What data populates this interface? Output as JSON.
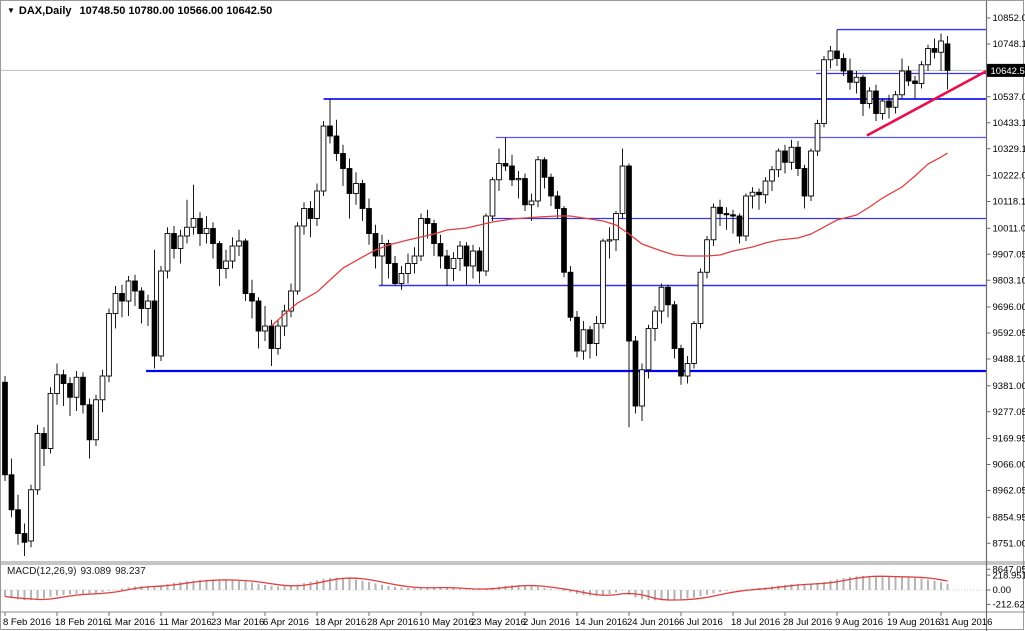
{
  "window": {
    "title_symbol": "DAX,Daily",
    "title_ohlc": "10748.50 10780.00 10566.00 10642.50"
  },
  "icons": {
    "dropdown": "▼"
  },
  "price_axis": {
    "labels": [
      "10852.05",
      "10748.10",
      "10537.05",
      "10433.10",
      "10329.15",
      "10222.05",
      "10118.10",
      "10011.00",
      "9907.05",
      "9803.10",
      "9696.00",
      "9592.05",
      "9488.10",
      "9381.00",
      "9277.05",
      "9169.95",
      "9066.00",
      "8962.05",
      "8854.95",
      "8751.00",
      "8647.05"
    ],
    "current_price_label": "10642.50"
  },
  "time_axis": {
    "labels": [
      "8 Feb 2016",
      "18 Feb 2016",
      "1 Mar 2016",
      "11 Mar 2016",
      "23 Mar 2016",
      "6 Apr 2016",
      "18 Apr 2016",
      "28 Apr 2016",
      "10 May 2016",
      "23 May 2016",
      "2 Jun 2016",
      "14 Jun 2016",
      "24 Jun 2016",
      "6 Jul 2016",
      "18 Jul 2016",
      "28 Jul 2016",
      "9 Aug 2016",
      "19 Aug 2016",
      "31 Aug 2016"
    ]
  },
  "macd": {
    "name_label": "MACD(12,26,9)",
    "value_main": "93.089",
    "value_signal": "98.237",
    "axis_labels": [
      "218.951",
      "0.00",
      "-212.627"
    ]
  },
  "colors": {
    "bull_fill": "#ffffff",
    "bear_fill": "#000000",
    "candle_stroke": "#000000",
    "ma_line": "#e04040",
    "trendline": "#e8104c",
    "level_blue": "#3434f0",
    "level_blue_bold": "#0000ff",
    "level_blue_light": "#5858ff",
    "macd_bar": "#b4b4b4",
    "macd_signal": "#e04040",
    "current_price_line": "#bdbdbd",
    "price_label_bg": "#000000",
    "price_label_fg": "#ffffff",
    "axis_line": "#6e6e6e",
    "separator": "#8c8c8c",
    "text": "#000000"
  },
  "chart_data": {
    "type": "candlestick",
    "title": "DAX,Daily",
    "last_bar": {
      "open": 10748.5,
      "high": 10780.0,
      "low": 10566.0,
      "close": 10642.5
    },
    "current_price": 10642.5,
    "ylim": [
      8647.05,
      10852.05
    ],
    "x_label_step_bars": 8,
    "candles": [
      [
        9395,
        9420,
        9000,
        9025
      ],
      [
        9025,
        9090,
        8855,
        8885
      ],
      [
        8885,
        8945,
        8745,
        8790
      ],
      [
        8790,
        8830,
        8700,
        8755
      ],
      [
        8760,
        8985,
        8735,
        8965
      ],
      [
        8965,
        9225,
        8945,
        9190
      ],
      [
        9190,
        9215,
        9060,
        9130
      ],
      [
        9130,
        9375,
        9110,
        9350
      ],
      [
        9350,
        9470,
        9305,
        9425
      ],
      [
        9425,
        9445,
        9300,
        9390
      ],
      [
        9390,
        9415,
        9260,
        9335
      ],
      [
        9335,
        9440,
        9280,
        9415
      ],
      [
        9415,
        9435,
        9270,
        9305
      ],
      [
        9305,
        9330,
        9090,
        9165
      ],
      [
        9165,
        9345,
        9140,
        9325
      ],
      [
        9325,
        9445,
        9275,
        9420
      ],
      [
        9420,
        9690,
        9395,
        9670
      ],
      [
        9670,
        9780,
        9610,
        9750
      ],
      [
        9750,
        9785,
        9655,
        9720
      ],
      [
        9720,
        9820,
        9660,
        9800
      ],
      [
        9800,
        9825,
        9700,
        9760
      ],
      [
        9760,
        9775,
        9630,
        9690
      ],
      [
        9690,
        9745,
        9620,
        9720
      ],
      [
        9720,
        9925,
        9450,
        9500
      ],
      [
        9500,
        9860,
        9480,
        9840
      ],
      [
        9840,
        10015,
        9810,
        9990
      ],
      [
        9990,
        10020,
        9890,
        9930
      ],
      [
        9930,
        10005,
        9870,
        9980
      ],
      [
        9980,
        10125,
        9950,
        10015
      ],
      [
        10015,
        10185,
        9985,
        10050
      ],
      [
        10050,
        10075,
        9940,
        9990
      ],
      [
        9990,
        10060,
        9950,
        10010
      ],
      [
        10010,
        10035,
        9890,
        9950
      ],
      [
        9950,
        9960,
        9780,
        9850
      ],
      [
        9850,
        9925,
        9810,
        9880
      ],
      [
        9880,
        9975,
        9850,
        9940
      ],
      [
        9940,
        10005,
        9900,
        9960
      ],
      [
        9960,
        9970,
        9720,
        9750
      ],
      [
        9750,
        9805,
        9650,
        9720
      ],
      [
        9720,
        9735,
        9530,
        9600
      ],
      [
        9600,
        9700,
        9560,
        9620
      ],
      [
        9620,
        9645,
        9460,
        9530
      ],
      [
        9530,
        9645,
        9505,
        9620
      ],
      [
        9620,
        9705,
        9580,
        9680
      ],
      [
        9680,
        9790,
        9655,
        9760
      ],
      [
        9760,
        10035,
        9745,
        10020
      ],
      [
        10020,
        10115,
        9985,
        10090
      ],
      [
        10090,
        10120,
        9975,
        10050
      ],
      [
        10050,
        10190,
        10020,
        10160
      ],
      [
        10160,
        10440,
        10140,
        10420
      ],
      [
        10420,
        10528,
        10350,
        10380
      ],
      [
        10380,
        10445,
        10280,
        10310
      ],
      [
        10310,
        10345,
        10180,
        10250
      ],
      [
        10250,
        10290,
        10050,
        10150
      ],
      [
        10150,
        10235,
        10105,
        10190
      ],
      [
        10190,
        10205,
        10040,
        10090
      ],
      [
        10090,
        10130,
        9945,
        9990
      ],
      [
        9990,
        10025,
        9850,
        9900
      ],
      [
        9900,
        9985,
        9782,
        9950
      ],
      [
        9950,
        9965,
        9810,
        9870
      ],
      [
        9870,
        9900,
        9782,
        9790
      ],
      [
        9790,
        9860,
        9765,
        9830
      ],
      [
        9830,
        9910,
        9790,
        9870
      ],
      [
        9870,
        9935,
        9830,
        9900
      ],
      [
        9900,
        10070,
        9880,
        10050
      ],
      [
        10050,
        10085,
        9970,
        10030
      ],
      [
        10030,
        10045,
        9900,
        9950
      ],
      [
        9950,
        9985,
        9850,
        9900
      ],
      [
        9900,
        9925,
        9780,
        9850
      ],
      [
        9850,
        9915,
        9800,
        9890
      ],
      [
        9890,
        9960,
        9840,
        9940
      ],
      [
        9940,
        9955,
        9785,
        9860
      ],
      [
        9860,
        9945,
        9810,
        9920
      ],
      [
        9920,
        9935,
        9790,
        9840
      ],
      [
        9840,
        10070,
        9820,
        10060
      ],
      [
        10060,
        10215,
        10040,
        10205
      ],
      [
        10205,
        10330,
        10160,
        10270
      ],
      [
        10270,
        10374,
        10240,
        10260
      ],
      [
        10260,
        10305,
        10180,
        10205
      ],
      [
        10205,
        10240,
        10130,
        10210
      ],
      [
        10210,
        10230,
        10080,
        10105
      ],
      [
        10105,
        10150,
        10040,
        10120
      ],
      [
        10120,
        10300,
        10095,
        10285
      ],
      [
        10285,
        10295,
        10170,
        10215
      ],
      [
        10215,
        10230,
        10100,
        10140
      ],
      [
        10140,
        10160,
        10050,
        10090
      ],
      [
        10090,
        10100,
        9815,
        9835
      ],
      [
        9835,
        9860,
        9640,
        9655
      ],
      [
        9655,
        9680,
        9495,
        9520
      ],
      [
        9520,
        9640,
        9485,
        9605
      ],
      [
        9605,
        9620,
        9490,
        9550
      ],
      [
        9550,
        9660,
        9500,
        9630
      ],
      [
        9630,
        9970,
        9610,
        9960
      ],
      [
        9960,
        10015,
        9890,
        9965
      ],
      [
        9965,
        10080,
        9920,
        10070
      ],
      [
        10070,
        10330,
        10050,
        10260
      ],
      [
        10260,
        10270,
        9215,
        9560
      ],
      [
        9560,
        9580,
        9270,
        9300
      ],
      [
        9300,
        9470,
        9240,
        9445
      ],
      [
        9445,
        9625,
        9410,
        9610
      ],
      [
        9610,
        9700,
        9560,
        9680
      ],
      [
        9680,
        9790,
        9630,
        9775
      ],
      [
        9775,
        9785,
        9655,
        9705
      ],
      [
        9705,
        9720,
        9490,
        9530
      ],
      [
        9530,
        9545,
        9385,
        9420
      ],
      [
        9420,
        9500,
        9390,
        9470
      ],
      [
        9470,
        9640,
        9450,
        9630
      ],
      [
        9630,
        9850,
        9610,
        9835
      ],
      [
        9835,
        9980,
        9810,
        9965
      ],
      [
        9965,
        10110,
        9940,
        10095
      ],
      [
        10095,
        10125,
        10020,
        10070
      ],
      [
        10070,
        10095,
        10005,
        10065
      ],
      [
        10065,
        10085,
        9990,
        10060
      ],
      [
        10060,
        10070,
        9950,
        9980
      ],
      [
        9980,
        10150,
        9960,
        10140
      ],
      [
        10140,
        10175,
        10090,
        10155
      ],
      [
        10155,
        10170,
        10085,
        10145
      ],
      [
        10145,
        10215,
        10110,
        10200
      ],
      [
        10200,
        10260,
        10160,
        10245
      ],
      [
        10245,
        10330,
        10215,
        10320
      ],
      [
        10320,
        10345,
        10230,
        10275
      ],
      [
        10275,
        10365,
        10245,
        10335
      ],
      [
        10335,
        10360,
        10220,
        10250
      ],
      [
        10250,
        10265,
        10090,
        10140
      ],
      [
        10140,
        10330,
        10120,
        10320
      ],
      [
        10320,
        10445,
        10300,
        10430
      ],
      [
        10430,
        10700,
        10415,
        10685
      ],
      [
        10685,
        10740,
        10650,
        10720
      ],
      [
        10720,
        10805,
        10660,
        10690
      ],
      [
        10690,
        10710,
        10620,
        10640
      ],
      [
        10640,
        10690,
        10565,
        10595
      ],
      [
        10595,
        10640,
        10550,
        10615
      ],
      [
        10615,
        10625,
        10460,
        10510
      ],
      [
        10510,
        10575,
        10490,
        10560
      ],
      [
        10560,
        10585,
        10440,
        10470
      ],
      [
        10470,
        10530,
        10445,
        10520
      ],
      [
        10520,
        10545,
        10450,
        10495
      ],
      [
        10495,
        10560,
        10470,
        10545
      ],
      [
        10545,
        10690,
        10530,
        10640
      ],
      [
        10640,
        10660,
        10580,
        10600
      ],
      [
        10600,
        10620,
        10530,
        10590
      ],
      [
        10590,
        10680,
        10570,
        10665
      ],
      [
        10665,
        10745,
        10640,
        10730
      ],
      [
        10730,
        10770,
        10690,
        10715
      ],
      [
        10715,
        10790,
        10640,
        10760
      ],
      [
        10748.5,
        10780,
        10566,
        10642.5
      ]
    ],
    "ma_line": {
      "name": "moving-average",
      "points": [
        [
          41,
          9620
        ],
        [
          43,
          9668
        ],
        [
          45,
          9712
        ],
        [
          48,
          9756
        ],
        [
          50,
          9804
        ],
        [
          52,
          9852
        ],
        [
          55,
          9896
        ],
        [
          57,
          9924
        ],
        [
          59,
          9944
        ],
        [
          62,
          9964
        ],
        [
          64,
          9976
        ],
        [
          66,
          9988
        ],
        [
          68,
          10004
        ],
        [
          71,
          10012
        ],
        [
          73,
          10024
        ],
        [
          75,
          10036
        ],
        [
          78,
          10048
        ],
        [
          80,
          10052
        ],
        [
          82,
          10056
        ],
        [
          85,
          10060
        ],
        [
          87,
          10060
        ],
        [
          89,
          10052
        ],
        [
          92,
          10040
        ],
        [
          94,
          10024
        ],
        [
          96,
          9988
        ],
        [
          98,
          9948
        ],
        [
          101,
          9920
        ],
        [
          103,
          9904
        ],
        [
          105,
          9900
        ],
        [
          108,
          9900
        ],
        [
          110,
          9904
        ],
        [
          112,
          9920
        ],
        [
          115,
          9936
        ],
        [
          117,
          9952
        ],
        [
          119,
          9964
        ],
        [
          122,
          9972
        ],
        [
          124,
          9988
        ],
        [
          126,
          10016
        ],
        [
          128,
          10044
        ],
        [
          131,
          10064
        ],
        [
          133,
          10096
        ],
        [
          135,
          10132
        ],
        [
          138,
          10176
        ],
        [
          140,
          10220
        ],
        [
          142,
          10268
        ],
        [
          144,
          10296
        ],
        [
          145,
          10312
        ]
      ]
    },
    "levels": [
      {
        "price": 10806,
        "from_bar": 128,
        "to_bar": 151,
        "width": 1.4,
        "bold": false
      },
      {
        "price": 10630,
        "from_bar": 124.8,
        "to_bar": 151,
        "width": 1.2,
        "bold": false
      },
      {
        "price": 10528,
        "from_bar": 49,
        "to_bar": 151,
        "width": 2,
        "bold": false
      },
      {
        "price": 10374,
        "from_bar": 75.5,
        "to_bar": 151,
        "width": 1.2,
        "light": true
      },
      {
        "price": 10050,
        "from_bar": 74.8,
        "to_bar": 151,
        "width": 1.3,
        "bold": false
      },
      {
        "price": 9782,
        "from_bar": 57.5,
        "to_bar": 151,
        "width": 1.5,
        "bold": false
      },
      {
        "price": 9440,
        "from_bar": 21.7,
        "to_bar": 151,
        "width": 2.2,
        "bold": true
      }
    ],
    "trendline": {
      "from_bar": 132.6,
      "from_price": 10382,
      "to_bar": 151,
      "to_price": 10640
    },
    "macd": {
      "params": "12,26,9",
      "macd_last": 93.089,
      "signal_last": 98.237,
      "axis": [
        218.951,
        0,
        -212.627
      ],
      "values": [
        -95,
        -120,
        -138,
        -150,
        -148,
        -140,
        -122,
        -100,
        -84,
        -72,
        -64,
        -56,
        -52,
        -60,
        -48,
        -32,
        -12,
        6,
        24,
        40,
        52,
        56,
        60,
        54,
        68,
        90,
        106,
        118,
        128,
        138,
        146,
        150,
        152,
        148,
        144,
        140,
        134,
        124,
        110,
        92,
        76,
        60,
        52,
        56,
        64,
        80,
        100,
        122,
        145,
        165,
        178,
        184,
        180,
        170,
        156,
        138,
        118,
        96,
        78,
        60,
        46,
        36,
        30,
        28,
        32,
        38,
        40,
        36,
        28,
        20,
        14,
        10,
        12,
        16,
        24,
        36,
        50,
        62,
        70,
        72,
        66,
        56,
        44,
        30,
        16,
        2,
        -14,
        -35,
        -58,
        -75,
        -85,
        -88,
        -80,
        -60,
        -35,
        -10,
        -70,
        -110,
        -135,
        -148,
        -152,
        -150,
        -145,
        -142,
        -138,
        -128,
        -112,
        -92,
        -70,
        -48,
        -28,
        -12,
        -2,
        2,
        10,
        20,
        30,
        40,
        52,
        64,
        75,
        85,
        90,
        88,
        92,
        102,
        118,
        138,
        158,
        175,
        190,
        202,
        208,
        206,
        200,
        194,
        190,
        192,
        194,
        190,
        180,
        168,
        152,
        135,
        115,
        93.1
      ]
    }
  }
}
